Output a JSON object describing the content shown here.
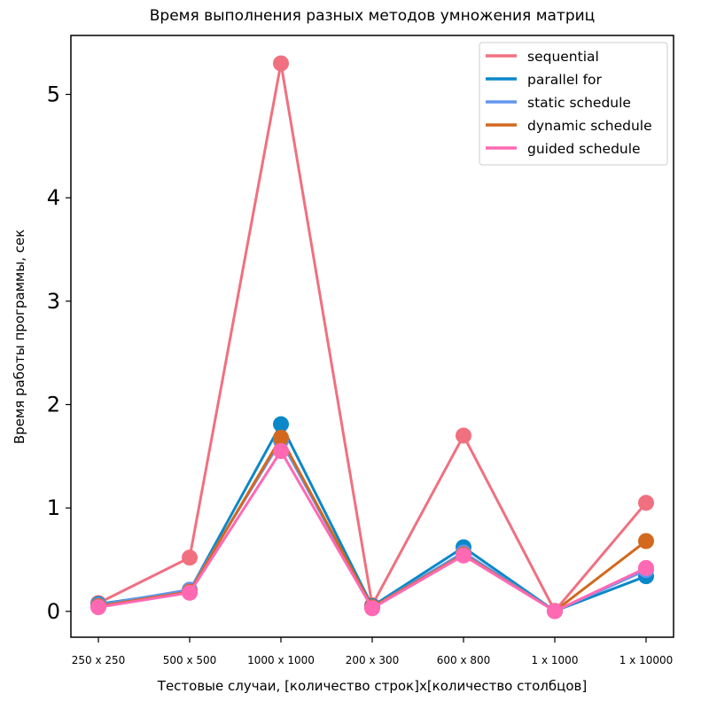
{
  "chart_data": {
    "type": "line",
    "title": "Время выполнения разных методов умножения матриц",
    "xlabel": "Тестовые случаи, [количество строк]x[количество столбцов]",
    "ylabel": "Время работы программы, сек",
    "categories": [
      "250 x 250",
      "500 x 500",
      "1000 x 1000",
      "200 x 300",
      "600 x 800",
      "1 x 1000",
      "1 x 10000"
    ],
    "yticks": [
      "0",
      "1",
      "2",
      "3",
      "4",
      "5"
    ],
    "ylim": [
      -0.25,
      5.57
    ],
    "grid": false,
    "legend_position": "top-right",
    "series": [
      {
        "name": "sequential",
        "color": "#f07080",
        "values": [
          0.08,
          0.52,
          5.3,
          0.06,
          1.7,
          0.005,
          1.05
        ]
      },
      {
        "name": "parallel for",
        "color": "#0b88c9",
        "values": [
          0.07,
          0.2,
          1.81,
          0.05,
          0.62,
          0.003,
          0.34
        ]
      },
      {
        "name": "static schedule",
        "color": "#6495ed",
        "values": [
          0.06,
          0.21,
          1.65,
          0.04,
          0.57,
          0.002,
          0.4
        ]
      },
      {
        "name": "dynamic schedule",
        "color": "#d2691e",
        "values": [
          0.05,
          0.19,
          1.68,
          0.04,
          0.55,
          0.003,
          0.68
        ]
      },
      {
        "name": "guided schedule",
        "color": "#ff69b4",
        "values": [
          0.04,
          0.18,
          1.55,
          0.03,
          0.54,
          0.002,
          0.42
        ]
      }
    ]
  }
}
